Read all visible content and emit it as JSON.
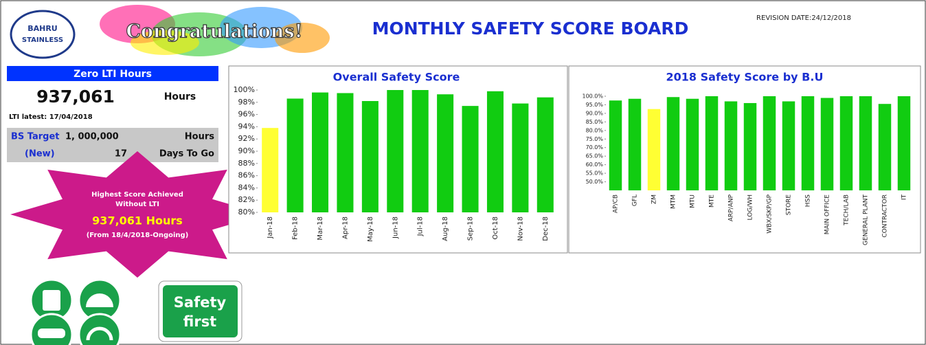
{
  "header": {
    "logo": [
      "BAHRU",
      "STAINLESS"
    ],
    "banner": "Congratulations!",
    "title": "MONTHLY SAFETY SCORE BOARD",
    "revision": "REVISION DATE:24/12/2018"
  },
  "lti_panel": {
    "heading": "Zero LTI Hours",
    "hours": "937,061",
    "hours_unit": "Hours",
    "latest": "LTI latest: 17/04/2018",
    "target_label": "BS Target",
    "target": "1, 000,000",
    "target_unit": "Hours",
    "new": "(New)",
    "days": "17",
    "days_label": "Days To Go"
  },
  "star": {
    "line1": "Highest Score Achieved",
    "line2": "Without LTI",
    "hours": "937,061 Hours",
    "since": "(From 18/4/2018-Ongoing)"
  },
  "sign": [
    "Safety",
    "first"
  ],
  "chart_data": [
    {
      "type": "bar",
      "title": "Overall Safety Score",
      "categories": [
        "Jan-18",
        "Feb-18",
        "Mar-18",
        "Apr-18",
        "May-18",
        "Jun-18",
        "Jul-18",
        "Aug-18",
        "Sep-18",
        "Oct-18",
        "Nov-18",
        "Dec-18"
      ],
      "values": [
        93.8,
        98.6,
        99.6,
        99.5,
        98.2,
        100,
        100,
        99.3,
        97.4,
        99.8,
        97.8,
        98.8
      ],
      "colors": [
        "#ffff33",
        "#11cc11",
        "#11cc11",
        "#11cc11",
        "#11cc11",
        "#11cc11",
        "#11cc11",
        "#11cc11",
        "#11cc11",
        "#11cc11",
        "#11cc11",
        "#11cc11"
      ],
      "ylim": [
        80,
        100
      ],
      "yticks": [
        {
          "value": 80,
          "label": "80%"
        },
        {
          "value": 82,
          "label": "82%"
        },
        {
          "value": 84,
          "label": "84%"
        },
        {
          "value": 86,
          "label": "86%"
        },
        {
          "value": 88,
          "label": "88%"
        },
        {
          "value": 90,
          "label": "90%"
        },
        {
          "value": 92,
          "label": "92%"
        },
        {
          "value": 94,
          "label": "94%"
        },
        {
          "value": 96,
          "label": "96%"
        },
        {
          "value": 98,
          "label": "98%"
        },
        {
          "value": 100,
          "label": "100%"
        }
      ],
      "grid": false
    },
    {
      "type": "bar",
      "title": "2018 Safety Score by B.U",
      "categories": [
        "AP/CB",
        "GFL",
        "ZM",
        "MTM",
        "MTU",
        "MTE",
        "ARP/ANP",
        "LOG/WH",
        "WBX/SKP/GP",
        "STORE",
        "HSS",
        "MAIN OFFICE",
        "TECH/LAB",
        "GENERAL PLANT",
        "CONTRACTOR",
        "IT"
      ],
      "values": [
        97.5,
        98.5,
        92.5,
        99.5,
        98.5,
        100,
        97,
        96,
        100,
        97,
        100,
        99,
        100,
        100,
        95.5,
        100
      ],
      "colors": [
        "#11cc11",
        "#11cc11",
        "#ffff33",
        "#11cc11",
        "#11cc11",
        "#11cc11",
        "#11cc11",
        "#11cc11",
        "#11cc11",
        "#11cc11",
        "#11cc11",
        "#11cc11",
        "#11cc11",
        "#11cc11",
        "#11cc11",
        "#11cc11"
      ],
      "ylim": [
        45,
        100
      ],
      "yticks": [
        {
          "value": 50,
          "label": "50.0%"
        },
        {
          "value": 55,
          "label": "55.0%"
        },
        {
          "value": 60,
          "label": "60.0%"
        },
        {
          "value": 65,
          "label": "65.0%"
        },
        {
          "value": 70,
          "label": "70.0%"
        },
        {
          "value": 75,
          "label": "75.0%"
        },
        {
          "value": 80,
          "label": "80.0%"
        },
        {
          "value": 85,
          "label": "85.0%"
        },
        {
          "value": 90,
          "label": "90.0%"
        },
        {
          "value": 95,
          "label": "95.0%"
        },
        {
          "value": 100,
          "label": "100.0%"
        }
      ],
      "grid": false
    }
  ]
}
